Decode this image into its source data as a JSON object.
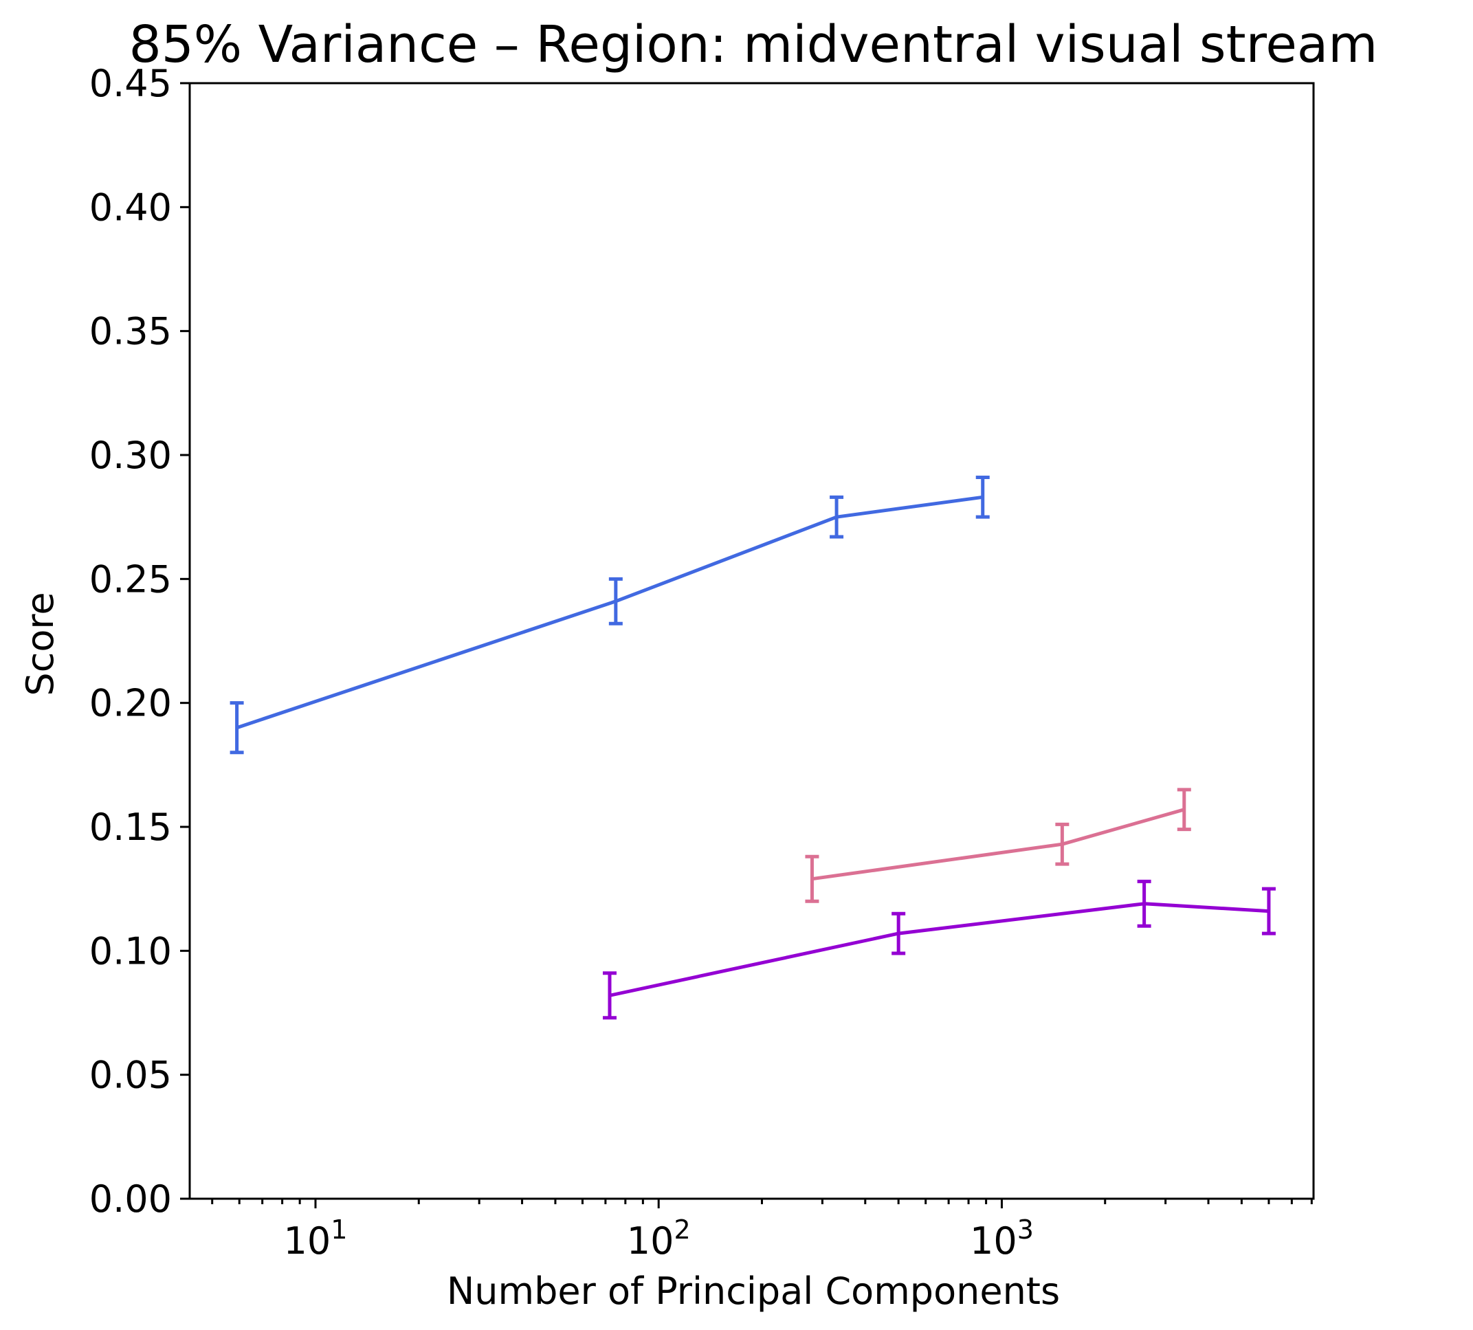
{
  "chart_data": {
    "type": "line",
    "title": "85% Variance – Region: midventral visual stream",
    "xlabel": "Number of Principal Components",
    "ylabel": "Score",
    "xscale": "log",
    "xlim": [
      4.3,
      8100
    ],
    "ylim": [
      0,
      0.45
    ],
    "yticks": [
      "0.00",
      "0.05",
      "0.10",
      "0.15",
      "0.20",
      "0.25",
      "0.30",
      "0.35",
      "0.40",
      "0.45"
    ],
    "xticks": [
      {
        "base": "10",
        "exp": "1",
        "value": 10
      },
      {
        "base": "10",
        "exp": "2",
        "value": 100
      },
      {
        "base": "10",
        "exp": "3",
        "value": 1000
      }
    ],
    "grid": false,
    "series": [
      {
        "color": "#4169E1",
        "x": [
          5.9,
          75,
          330,
          880
        ],
        "y": [
          0.19,
          0.241,
          0.275,
          0.283
        ],
        "err": [
          0.01,
          0.009,
          0.008,
          0.008
        ]
      },
      {
        "color": "#DB7093",
        "x": [
          280,
          1500,
          3400
        ],
        "y": [
          0.129,
          0.143,
          0.157
        ],
        "err": [
          0.009,
          0.008,
          0.008
        ]
      },
      {
        "color": "#9400D3",
        "x": [
          72,
          500,
          2600,
          6000
        ],
        "y": [
          0.082,
          0.107,
          0.119,
          0.116
        ],
        "err": [
          0.009,
          0.008,
          0.009,
          0.009
        ]
      }
    ]
  }
}
